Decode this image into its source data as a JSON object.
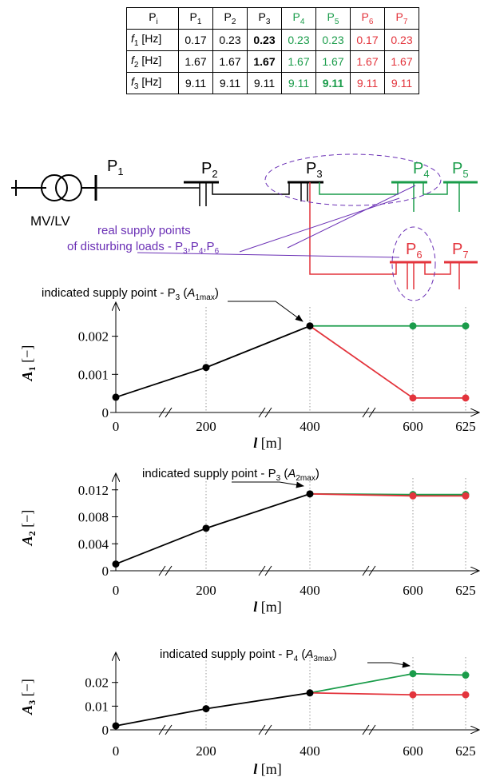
{
  "colors": {
    "black": "#000000",
    "green": "#1a9c4a",
    "red": "#e3343c",
    "purple": "#6a2fb5"
  },
  "table": {
    "headers": [
      {
        "main": "P",
        "sub": "i",
        "color": "black"
      },
      {
        "main": "P",
        "sub": "1",
        "color": "black"
      },
      {
        "main": "P",
        "sub": "2",
        "color": "black"
      },
      {
        "main": "P",
        "sub": "3",
        "color": "black"
      },
      {
        "main": "P",
        "sub": "4",
        "color": "green"
      },
      {
        "main": "P",
        "sub": "5",
        "color": "green"
      },
      {
        "main": "P",
        "sub": "6",
        "color": "red"
      },
      {
        "main": "P",
        "sub": "7",
        "color": "red"
      }
    ],
    "rows": [
      {
        "label_main": "f",
        "label_sub": "1",
        "label_unit": " [Hz]",
        "values": [
          "0.17",
          "0.23",
          "0.23",
          "0.23",
          "0.23",
          "0.17",
          "0.23"
        ],
        "bold_index": 2
      },
      {
        "label_main": "f",
        "label_sub": "2",
        "label_unit": " [Hz]",
        "values": [
          "1.67",
          "1.67",
          "1.67",
          "1.67",
          "1.67",
          "1.67",
          "1.67"
        ],
        "bold_index": 2
      },
      {
        "label_main": "f",
        "label_sub": "3",
        "label_unit": " [Hz]",
        "values": [
          "9.11",
          "9.11",
          "9.11",
          "9.11",
          "9.11",
          "9.11",
          "9.11"
        ],
        "bold_index": 4
      }
    ]
  },
  "network": {
    "transformer_label": "MV/LV",
    "nodes": [
      {
        "id": "P1",
        "main": "P",
        "sub": "1",
        "color": "black"
      },
      {
        "id": "P2",
        "main": "P",
        "sub": "2",
        "color": "black"
      },
      {
        "id": "P3",
        "main": "P",
        "sub": "3",
        "color": "black"
      },
      {
        "id": "P4",
        "main": "P",
        "sub": "4",
        "color": "green"
      },
      {
        "id": "P5",
        "main": "P",
        "sub": "5",
        "color": "green"
      },
      {
        "id": "P6",
        "main": "P",
        "sub": "6",
        "color": "red"
      },
      {
        "id": "P7",
        "main": "P",
        "sub": "7",
        "color": "red"
      }
    ],
    "annotation_line1": "real supply points",
    "annotation_line2": "of disturbing loads - P",
    "annotation_points": [
      {
        "s": "3",
        "t": ",P"
      },
      {
        "s": "4",
        "t": ",P"
      },
      {
        "s": "6",
        "t": ""
      }
    ]
  },
  "chart_data": [
    {
      "type": "line",
      "ylabel_main": "A",
      "ylabel_sub": "1",
      "ylabel_unit": " [−]",
      "xlabel_main": "l",
      "xlabel_unit": " [m]",
      "x_ticks": [
        "0",
        "200",
        "400",
        "600",
        "625"
      ],
      "y_ticks": [
        "0",
        "0.001",
        "0.002"
      ],
      "ylim": [
        0,
        0.0026
      ],
      "annotation": {
        "prefix": "indicated supply point - P",
        "sub": "3",
        "paren_main": "A",
        "paren_sub": "1max"
      },
      "series": [
        {
          "color": "black",
          "x": [
            0,
            200,
            400
          ],
          "y": [
            0.0004,
            0.00118,
            0.00227
          ]
        },
        {
          "color": "green",
          "x": [
            400,
            600,
            625
          ],
          "y": [
            0.00227,
            0.00227,
            0.00227
          ]
        },
        {
          "color": "red",
          "x": [
            400,
            600,
            625
          ],
          "y": [
            0.00227,
            0.00038,
            0.00038
          ]
        }
      ]
    },
    {
      "type": "line",
      "ylabel_main": "A",
      "ylabel_sub": "2",
      "ylabel_unit": " [−]",
      "xlabel_main": "l",
      "xlabel_unit": " [m]",
      "x_ticks": [
        "0",
        "200",
        "400",
        "600",
        "625"
      ],
      "y_ticks": [
        "0",
        "0.004",
        "0.008",
        "0.012"
      ],
      "ylim": [
        0,
        0.0128
      ],
      "annotation": {
        "prefix": "indicated supply point - P",
        "sub": "3",
        "paren_main": "A",
        "paren_sub": "2max"
      },
      "series": [
        {
          "color": "black",
          "x": [
            0,
            200,
            400
          ],
          "y": [
            0.001,
            0.0063,
            0.0114
          ]
        },
        {
          "color": "green",
          "x": [
            400,
            600,
            625
          ],
          "y": [
            0.0114,
            0.0113,
            0.0113
          ]
        },
        {
          "color": "red",
          "x": [
            400,
            600,
            625
          ],
          "y": [
            0.0114,
            0.0111,
            0.0111
          ]
        }
      ]
    },
    {
      "type": "line",
      "ylabel_main": "A",
      "ylabel_sub": "3",
      "ylabel_unit": " [−]",
      "xlabel_main": "l",
      "xlabel_unit": " [m]",
      "x_ticks": [
        "0",
        "200",
        "400",
        "600",
        "625"
      ],
      "y_ticks": [
        "0",
        "0.01",
        "0.02"
      ],
      "ylim": [
        0,
        0.028
      ],
      "annotation": {
        "prefix": "indicated supply point - P",
        "sub": "4",
        "paren_main": "A",
        "paren_sub": "3max"
      },
      "series": [
        {
          "color": "black",
          "x": [
            0,
            200,
            400
          ],
          "y": [
            0.0017,
            0.0089,
            0.0156
          ]
        },
        {
          "color": "green",
          "x": [
            400,
            600,
            625
          ],
          "y": [
            0.0156,
            0.0237,
            0.0231
          ]
        },
        {
          "color": "red",
          "x": [
            400,
            600,
            625
          ],
          "y": [
            0.0156,
            0.0148,
            0.0148
          ]
        }
      ]
    }
  ]
}
